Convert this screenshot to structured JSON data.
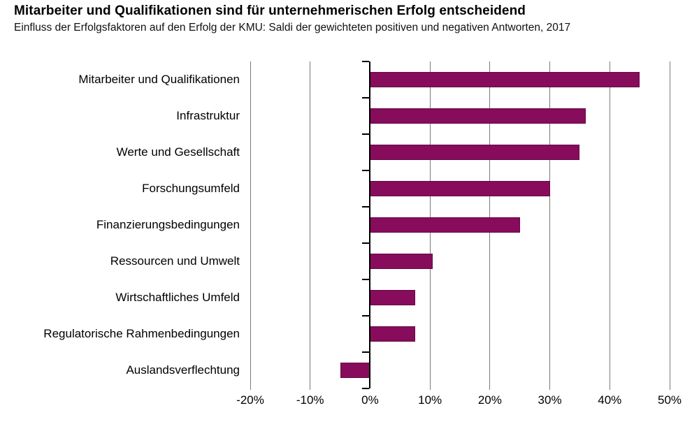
{
  "header": {
    "title": "Mitarbeiter und Qualifikationen sind für unternehmerischen Erfolg entscheidend",
    "subtitle": "Einfluss der Erfolgsfaktoren auf den Erfolg der KMU: Saldi der gewichteten positiven und negativen Antworten, 2017"
  },
  "chart_data": {
    "type": "bar",
    "orientation": "horizontal",
    "title": "Mitarbeiter und Qualifikationen sind für unternehmerischen Erfolg entscheidend",
    "subtitle": "Einfluss der Erfolgsfaktoren auf den Erfolg der KMU: Saldi der gewichteten positiven und negativen Antworten, 2017",
    "categories": [
      "Mitarbeiter und Qualifikationen",
      "Infrastruktur",
      "Werte und Gesellschaft",
      "Forschungsumfeld",
      "Finanzierungsbedingungen",
      "Ressourcen und Umwelt",
      "Wirtschaftliches Umfeld",
      "Regulatorische Rahmenbedingungen",
      "Auslandsverflechtung"
    ],
    "values": [
      45,
      36,
      35,
      30,
      25,
      10.5,
      7.5,
      7.5,
      -5
    ],
    "unit": "%",
    "xlim": [
      -20,
      50
    ],
    "x_ticks": [
      -20,
      -10,
      0,
      10,
      20,
      30,
      40,
      50
    ],
    "x_tick_labels": [
      "-20%",
      "-10%",
      "0%",
      "10%",
      "20%",
      "30%",
      "40%",
      "50%"
    ],
    "grid": true,
    "legend": false,
    "colors": {
      "bar_fill": "#870C5C",
      "bar_border": "#650945",
      "gridline": "#7a7a7a",
      "zero_axis": "#000000",
      "text": "#000000"
    }
  }
}
